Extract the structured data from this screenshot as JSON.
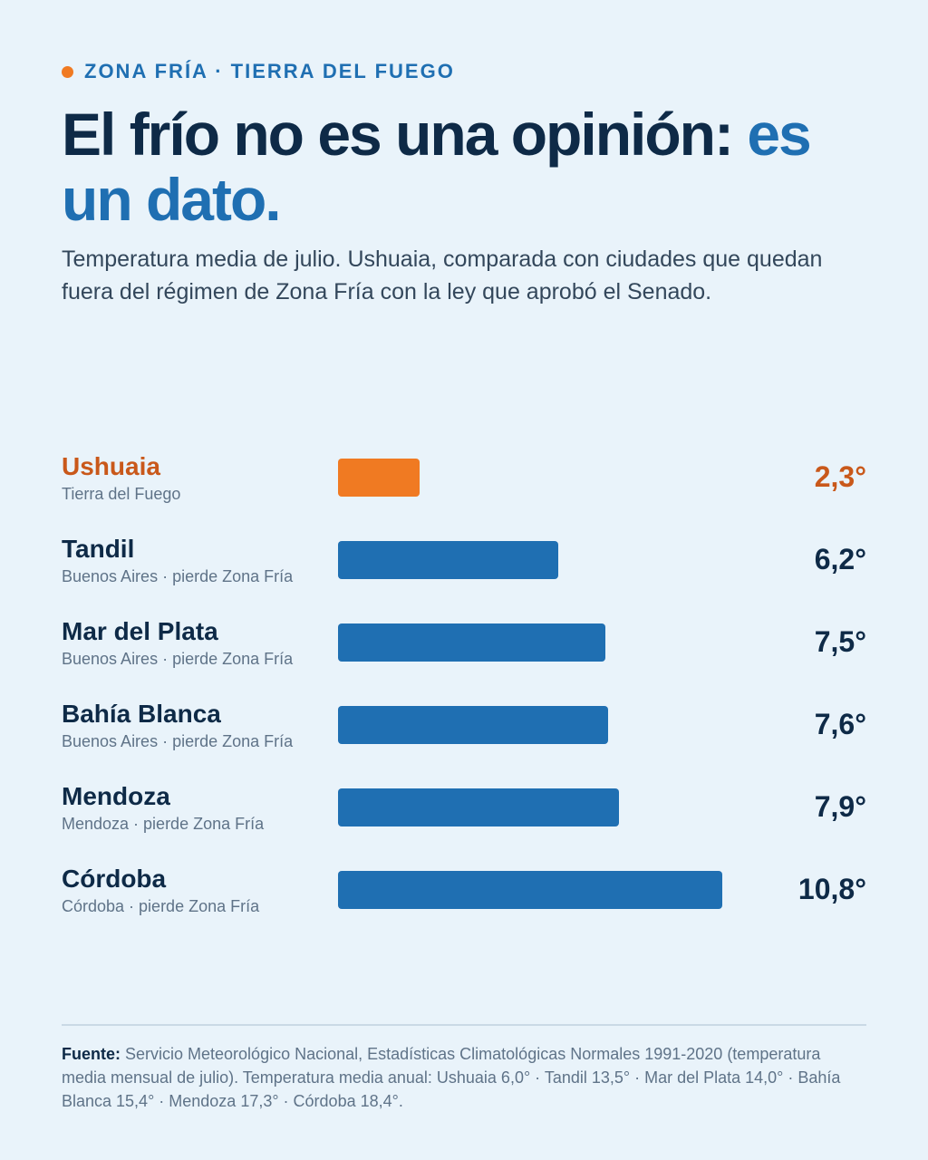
{
  "kicker": "ZONA FRÍA · TIERRA DEL FUEGO",
  "headline": {
    "main": "El frío no es una opinión: ",
    "accent": "es un dato."
  },
  "subtitle": "Temperatura media de julio. Ushuaia, comparada con ciudades que quedan fuera del régimen de Zona Fría con la ley que aprobó el Senado.",
  "colors": {
    "background": "#e9f3fa",
    "highlight": "#f07a22",
    "highlight_text": "#c9581a",
    "bar": "#1f6fb2",
    "text": "#0e2a47"
  },
  "chart_data": {
    "type": "bar",
    "orientation": "horizontal",
    "unit": "°",
    "xlim": [
      0,
      11
    ],
    "categories": [
      "Ushuaia",
      "Tandil",
      "Mar del Plata",
      "Bahía Blanca",
      "Mendoza",
      "Córdoba"
    ],
    "sublabels": [
      "Tierra del Fuego",
      "Buenos Aires · pierde Zona Fría",
      "Buenos Aires · pierde Zona Fría",
      "Buenos Aires · pierde Zona Fría",
      "Mendoza · pierde Zona Fría",
      "Córdoba · pierde Zona Fría"
    ],
    "values": [
      2.3,
      6.2,
      7.5,
      7.6,
      7.9,
      10.8
    ],
    "value_labels": [
      "2,3°",
      "6,2°",
      "7,5°",
      "7,6°",
      "7,9°",
      "10,8°"
    ],
    "highlight_index": 0
  },
  "source": {
    "label": "Fuente:",
    "text": " Servicio Meteorológico Nacional, Estadísticas Climatológicas Normales 1991-2020 (temperatura media mensual de julio). Temperatura media anual: Ushuaia 6,0° · Tandil 13,5° · Mar del Plata 14,0° · Bahía Blanca 15,4° · Mendoza 17,3° · Córdoba 18,4°."
  }
}
